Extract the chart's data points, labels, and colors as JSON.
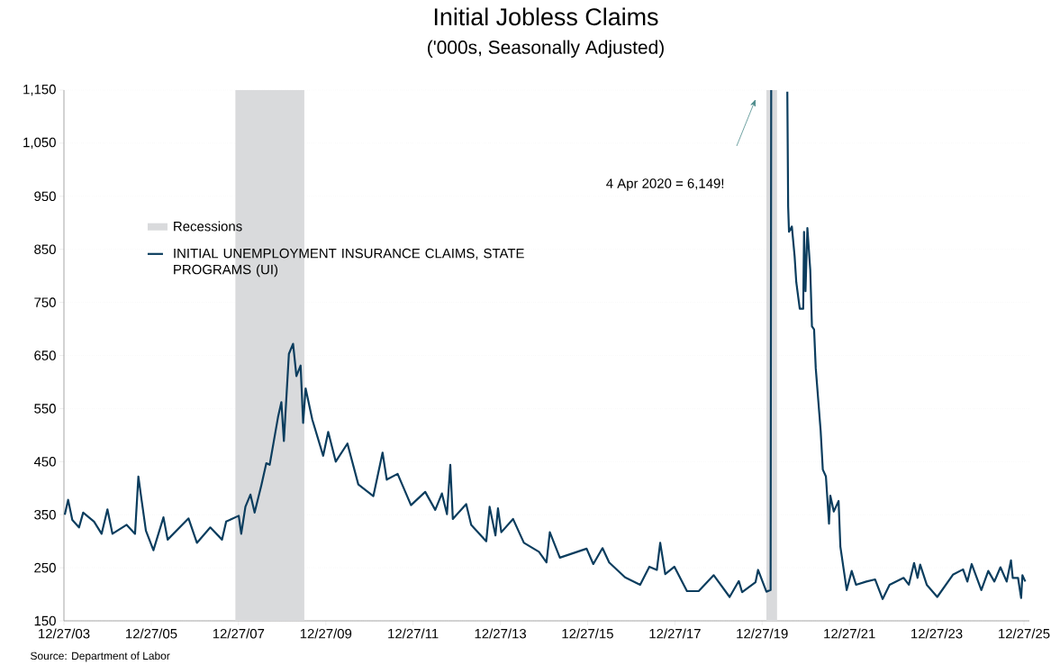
{
  "chart_data": {
    "type": "line",
    "title": "Initial Jobless Claims",
    "subtitle": "('000s, Seasonally Adjusted)",
    "x": [
      "2004-01-03",
      "2004-01-31",
      "2004-03-06",
      "2004-05-01",
      "2004-06-05",
      "2004-09-04",
      "2004-11-06",
      "2004-12-25",
      "2005-02-05",
      "2005-06-04",
      "2005-08-13",
      "2005-09-10",
      "2005-10-08",
      "2005-11-12",
      "2006-01-14",
      "2006-04-08",
      "2006-05-13",
      "2006-11-04",
      "2007-01-13",
      "2007-05-05",
      "2007-08-11",
      "2007-09-15",
      "2007-12-29",
      "2008-01-19",
      "2008-02-23",
      "2008-04-05",
      "2008-05-10",
      "2008-07-05",
      "2008-08-16",
      "2008-09-13",
      "2008-10-18",
      "2008-11-22",
      "2008-12-20",
      "2009-01-10",
      "2009-02-21",
      "2009-03-28",
      "2009-04-25",
      "2009-05-30",
      "2009-06-20",
      "2009-07-11",
      "2009-09-05",
      "2009-12-05",
      "2010-01-16",
      "2010-03-20",
      "2010-06-26",
      "2010-09-25",
      "2011-01-29",
      "2011-04-16",
      "2011-05-21",
      "2011-08-20",
      "2011-12-10",
      "2012-04-07",
      "2012-06-30",
      "2012-08-25",
      "2012-10-06",
      "2012-11-03",
      "2012-11-24",
      "2013-03-16",
      "2013-04-27",
      "2013-08-31",
      "2013-09-28",
      "2013-11-16",
      "2013-12-07",
      "2014-01-04",
      "2014-04-12",
      "2014-07-12",
      "2014-11-15",
      "2015-01-17",
      "2015-02-14",
      "2015-05-09",
      "2015-12-19",
      "2016-02-13",
      "2016-04-30",
      "2016-06-25",
      "2016-11-05",
      "2017-03-11",
      "2017-05-27",
      "2017-07-29",
      "2017-08-26",
      "2017-10-07",
      "2017-12-23",
      "2018-04-07",
      "2018-07-14",
      "2018-11-17",
      "2019-03-30",
      "2019-06-15",
      "2019-07-13",
      "2019-11-02",
      "2019-11-23",
      "2020-02-01",
      "2020-03-07",
      "2020-03-12",
      "2020-04-04",
      "2020-07-25",
      "2020-08-01",
      "2020-08-08",
      "2020-09-01",
      "2020-09-24",
      "2020-10-08",
      "2020-11-06",
      "2020-12-05",
      "2020-12-12",
      "2020-12-24",
      "2021-01-09",
      "2021-02-02",
      "2021-02-16",
      "2021-03-06",
      "2021-03-20",
      "2021-04-07",
      "2021-04-30",
      "2021-05-18",
      "2021-06-13",
      "2021-07-09",
      "2021-07-20",
      "2021-08-18",
      "2021-09-27",
      "2021-10-12",
      "2021-12-04",
      "2022-01-15",
      "2022-02-20",
      "2022-05-18",
      "2022-07-30",
      "2022-10-01",
      "2022-11-28",
      "2023-03-25",
      "2023-05-08",
      "2023-06-21",
      "2023-07-20",
      "2023-08-11",
      "2023-10-05",
      "2024-01-01",
      "2024-05-11",
      "2024-08-04",
      "2024-09-09",
      "2024-10-15",
      "2025-01-04",
      "2025-03-03",
      "2025-04-23",
      "2025-06-13",
      "2025-08-04",
      "2025-09-09",
      "2025-09-24",
      "2025-11-07",
      "2025-12-03",
      "2025-12-14",
      "2026-01-07"
    ],
    "series": [
      {
        "name": "INITIAL UNEMPLOYMENT INSURANCE CLAIMS, STATE PROGRAMS (UI)",
        "color": "#0b3d5e",
        "values": [
          350,
          378,
          340,
          326,
          354,
          337,
          314,
          360,
          314,
          331,
          314,
          422,
          376,
          320,
          283,
          345,
          303,
          343,
          297,
          326,
          303,
          337,
          348,
          314,
          365,
          388,
          354,
          405,
          447,
          444,
          489,
          534,
          562,
          489,
          653,
          672,
          611,
          631,
          523,
          588,
          529,
          461,
          506,
          450,
          484,
          407,
          385,
          467,
          416,
          427,
          368,
          393,
          359,
          390,
          351,
          444,
          342,
          370,
          331,
          300,
          365,
          311,
          362,
          317,
          342,
          297,
          280,
          260,
          317,
          269,
          286,
          257,
          287,
          260,
          232,
          218,
          252,
          246,
          297,
          238,
          252,
          206,
          206,
          236,
          195,
          225,
          204,
          223,
          246,
          205,
          208,
          1150,
          null,
          1147,
          930,
          883,
          893,
          837,
          788,
          738,
          738,
          883,
          771,
          890,
          811,
          705,
          699,
          626,
          574,
          508,
          435,
          422,
          333,
          386,
          356,
          376,
          290,
          208,
          244,
          218,
          224,
          228,
          191,
          218,
          231,
          218,
          259,
          231,
          256,
          218,
          195,
          237,
          247,
          224,
          257,
          208,
          244,
          224,
          251,
          224,
          264,
          231,
          231,
          193,
          236,
          224
        ]
      }
    ],
    "xlim": [
      "2003-12-27",
      "2026-02-10"
    ],
    "xticks": [
      {
        "value": "2003-12-27",
        "label": "12/27/03"
      },
      {
        "value": "2005-12-27",
        "label": "12/27/05"
      },
      {
        "value": "2007-12-27",
        "label": "12/27/07"
      },
      {
        "value": "2009-12-27",
        "label": "12/27/09"
      },
      {
        "value": "2011-12-27",
        "label": "12/27/11"
      },
      {
        "value": "2013-12-27",
        "label": "12/27/13"
      },
      {
        "value": "2015-12-27",
        "label": "12/27/15"
      },
      {
        "value": "2017-12-27",
        "label": "12/27/17"
      },
      {
        "value": "2019-12-27",
        "label": "12/27/19"
      },
      {
        "value": "2021-12-27",
        "label": "12/27/21"
      },
      {
        "value": "2023-12-27",
        "label": "12/27/23"
      },
      {
        "value": "2025-12-27",
        "label": "12/27/25"
      }
    ],
    "ylim": [
      150,
      1150
    ],
    "yticks": [
      150,
      250,
      350,
      450,
      550,
      650,
      750,
      850,
      950,
      {
        "value": 1050,
        "label": "1,050"
      },
      {
        "value": 1150,
        "label": "1,150"
      }
    ],
    "bands": [
      {
        "axis": "x",
        "from": "2007-12-01",
        "to": "2009-06-30",
        "label": "Recessions",
        "color": "#d9dadc"
      },
      {
        "axis": "x",
        "from": "2020-02-01",
        "to": "2020-04-30",
        "color": "#d9dadc"
      }
    ],
    "annotations": [
      "4 Apr 2020 = 6,149!",
      "Source: Department of Labor"
    ],
    "grid": "y",
    "legend": "top left",
    "line_style": "solid"
  }
}
